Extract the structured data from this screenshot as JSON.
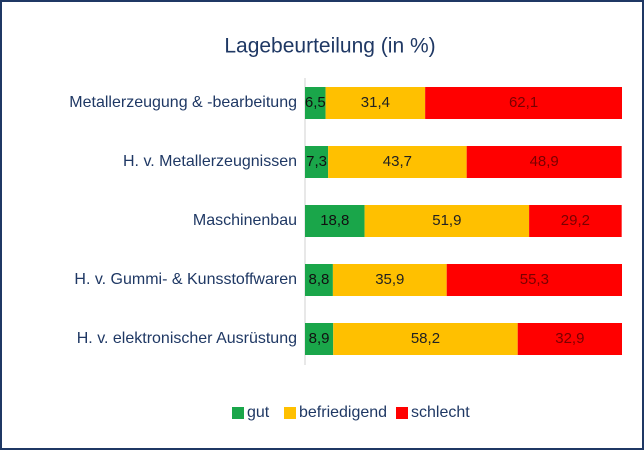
{
  "chart_data": {
    "type": "stacked_bar_horizontal",
    "title": "Lagebeurteilung (in %)",
    "categories": [
      "Metallerzeugung & -bearbeitung",
      "H. v. Metallerzeugnissen",
      "Maschinenbau",
      "H. v. Gummi- & Kunsstoffwaren",
      "H. v. elektronischer Ausrüstung"
    ],
    "series": [
      {
        "name": "gut",
        "color": "#1aa64a",
        "values": [
          6.5,
          7.3,
          18.8,
          8.8,
          8.9
        ],
        "value_labels": [
          "6,5",
          "7,3",
          "18,8",
          "8,8",
          "8,9"
        ]
      },
      {
        "name": "befriedigend",
        "color": "#ffc000",
        "values": [
          31.4,
          43.7,
          51.9,
          35.9,
          58.2
        ],
        "value_labels": [
          "31,4",
          "43,7",
          "51,9",
          "35,9",
          "58,2"
        ]
      },
      {
        "name": "schlecht",
        "color": "#ff0000",
        "values": [
          62.1,
          48.9,
          29.2,
          55.3,
          32.9
        ],
        "value_labels": [
          "62,1",
          "48,9",
          "29,2",
          "55,3",
          "32,9"
        ]
      }
    ],
    "xlim": [
      0,
      100
    ],
    "legend": "bottom"
  }
}
